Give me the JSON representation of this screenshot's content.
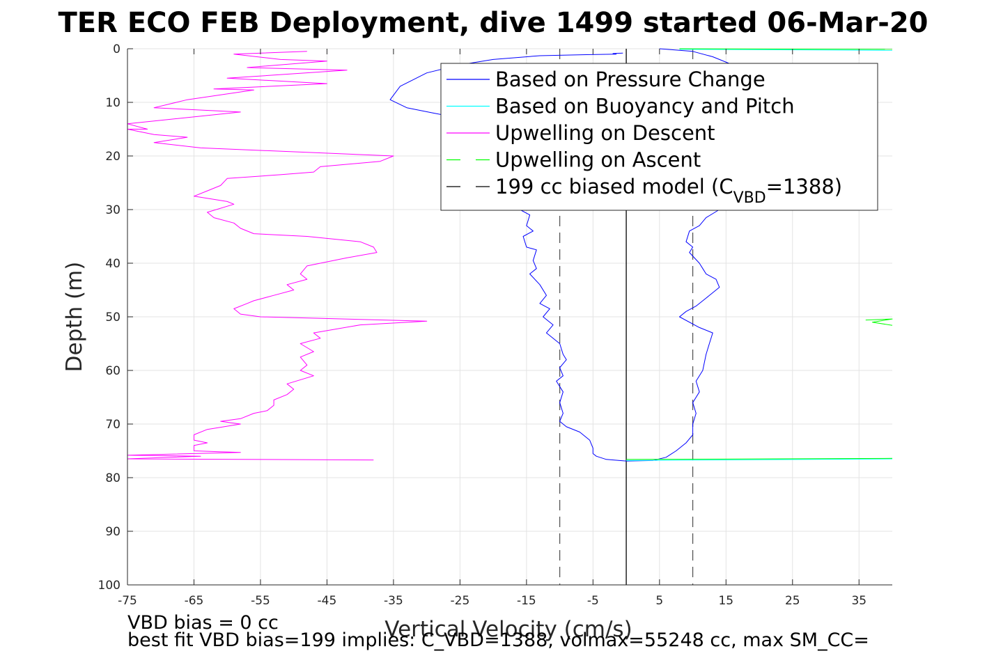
{
  "chart_data": {
    "type": "line",
    "title": "TER ECO FEB Deployment, dive 1499 started 06-Mar-20",
    "xlabel": "Vertical Velocity (cm/s)",
    "ylabel": "Depth (m)",
    "xlim": [
      -75,
      40
    ],
    "ylim": [
      0,
      100
    ],
    "y_reversed": true,
    "grid": true,
    "xticks": [
      "-75",
      "-65",
      "-55",
      "-45",
      "-35",
      "-25",
      "-15",
      "-5",
      "5",
      "15",
      "25",
      "35"
    ],
    "xtick_values": [
      -75,
      -65,
      -55,
      -45,
      -35,
      -25,
      -15,
      -5,
      5,
      15,
      25,
      35
    ],
    "yticks": [
      "0",
      "10",
      "20",
      "30",
      "40",
      "50",
      "60",
      "70",
      "80",
      "90",
      "100"
    ],
    "ytick_values": [
      0,
      10,
      20,
      30,
      40,
      50,
      60,
      70,
      80,
      90,
      100
    ],
    "legend": {
      "placement": "top-right",
      "entries": [
        {
          "label": "Based on Pressure Change",
          "color": "#0000ff",
          "dash": "solid"
        },
        {
          "label": "Based on Buoyancy and Pitch",
          "color": "#00ffff",
          "dash": "solid"
        },
        {
          "label": "Upwelling on Descent",
          "color": "#ff00ff",
          "dash": "solid"
        },
        {
          "label": "Upwelling on Ascent",
          "color": "#00ff00",
          "dash": "dashed"
        },
        {
          "label": "199 cc biased model (C",
          "sub": "VBD",
          "suffix": "=1388)",
          "color": "#000000",
          "dash": "dashed"
        }
      ]
    },
    "series": [
      {
        "name": "Based on Pressure Change (descent)",
        "color": "#0000ff",
        "points": [
          [
            -0.5,
            0.8
          ],
          [
            -2,
            0.9
          ],
          [
            -1.5,
            1.0
          ],
          [
            -6,
            1.1
          ],
          [
            -13,
            1.3
          ],
          [
            -20,
            2.0
          ],
          [
            -25,
            3.0
          ],
          [
            -30,
            4.5
          ],
          [
            -34,
            7.0
          ],
          [
            -35.5,
            9.5
          ],
          [
            -33,
            11.0
          ],
          [
            -29,
            12.0
          ],
          [
            -26,
            12.7
          ],
          [
            -24,
            13.0
          ],
          [
            -16,
            30.0
          ],
          [
            -14.5,
            31.0
          ],
          [
            -15,
            33.0
          ],
          [
            -14,
            34.0
          ],
          [
            -15.5,
            35.0
          ],
          [
            -15,
            37.0
          ],
          [
            -13.5,
            37.5
          ],
          [
            -14,
            39.5
          ],
          [
            -13.5,
            41.0
          ],
          [
            -14.5,
            42.0
          ],
          [
            -13,
            44.0
          ],
          [
            -12,
            46.0
          ],
          [
            -13,
            47.5
          ],
          [
            -11.5,
            48.5
          ],
          [
            -12.5,
            50.0
          ],
          [
            -11,
            51.5
          ],
          [
            -12,
            53.0
          ],
          [
            -10,
            55.0
          ],
          [
            -9.5,
            57.0
          ],
          [
            -9,
            58.0
          ],
          [
            -10,
            59.5
          ],
          [
            -9.5,
            61.0
          ],
          [
            -10.5,
            62.0
          ],
          [
            -9.5,
            64.0
          ],
          [
            -10,
            66.0
          ],
          [
            -9.5,
            68.0
          ],
          [
            -10,
            69.5
          ],
          [
            -9,
            70.5
          ],
          [
            -7,
            71.5
          ],
          [
            -5.5,
            73.0
          ],
          [
            -5,
            74.5
          ],
          [
            -5,
            75.5
          ],
          [
            -4.5,
            76.0
          ],
          [
            -3,
            76.6
          ],
          [
            -1,
            76.8
          ],
          [
            0,
            76.9
          ]
        ]
      },
      {
        "name": "Based on Pressure Change (ascent)",
        "color": "#0000ff",
        "points": [
          [
            0,
            76.9
          ],
          [
            4,
            76.8
          ],
          [
            6,
            76.2
          ],
          [
            7.5,
            75.0
          ],
          [
            9,
            73.5
          ],
          [
            10,
            72.0
          ],
          [
            10,
            70.0
          ],
          [
            10.5,
            68.0
          ],
          [
            10,
            66.0
          ],
          [
            11,
            64.0
          ],
          [
            10.5,
            62.0
          ],
          [
            11.5,
            60.0
          ],
          [
            12,
            57.0
          ],
          [
            12.5,
            55.0
          ],
          [
            13,
            53.0
          ],
          [
            11,
            52.0
          ],
          [
            8,
            50.0
          ],
          [
            9,
            49.0
          ],
          [
            10.5,
            48.0
          ],
          [
            12,
            46.5
          ],
          [
            14,
            44.5
          ],
          [
            13.5,
            43.0
          ],
          [
            12,
            42.0
          ],
          [
            11.5,
            41.0
          ],
          [
            11,
            40.0
          ],
          [
            9.5,
            38.0
          ],
          [
            10,
            37.0
          ],
          [
            9,
            36.0
          ],
          [
            9.5,
            34.0
          ],
          [
            11,
            33.0
          ],
          [
            12,
            31.5
          ],
          [
            14,
            30.0
          ]
        ]
      },
      {
        "name": "Based on Pressure Change (surface)",
        "color": "#0000ff",
        "points": [
          [
            5,
            0
          ],
          [
            10,
            0.5
          ],
          [
            13,
            1.5
          ],
          [
            16,
            3.0
          ],
          [
            18,
            4.0
          ]
        ]
      },
      {
        "name": "Based on Buoyancy and Pitch (surface)",
        "color": "#00ffff",
        "points": [
          [
            8,
            0.1
          ],
          [
            40,
            0.3
          ]
        ]
      },
      {
        "name": "Based on Buoyancy and Pitch (bottom)",
        "color": "#00ffff",
        "points": [
          [
            0,
            76.8
          ],
          [
            40,
            76.5
          ]
        ]
      },
      {
        "name": "Upwelling on Descent",
        "color": "#ff00ff",
        "points": [
          [
            -48,
            0.5
          ],
          [
            -59,
            1.0
          ],
          [
            -52,
            2.0
          ],
          [
            -45,
            2.3
          ],
          [
            -57,
            3.5
          ],
          [
            -42,
            4.0
          ],
          [
            -60,
            5.5
          ],
          [
            -45,
            6.5
          ],
          [
            -62,
            7.5
          ],
          [
            -56,
            7.7
          ],
          [
            -66,
            9.5
          ],
          [
            -71,
            11.0
          ],
          [
            -58,
            11.8
          ],
          [
            -75,
            14.0
          ],
          [
            -72,
            15.0
          ],
          [
            -75,
            15.0
          ],
          [
            -71,
            16.0
          ],
          [
            -66,
            16.5
          ],
          [
            -71,
            17.5
          ],
          [
            -64,
            18.5
          ],
          [
            -35,
            20.0
          ],
          [
            -37,
            21.0
          ],
          [
            -46,
            22.0
          ],
          [
            -47,
            23.0
          ],
          [
            -52,
            23.5
          ],
          [
            -60,
            24.2
          ],
          [
            -61,
            25.5
          ],
          [
            -63,
            26.5
          ],
          [
            -65,
            27.5
          ],
          [
            -60,
            28.5
          ],
          [
            -59,
            29.0
          ],
          [
            -63,
            30.5
          ],
          [
            -62,
            31.5
          ],
          [
            -59,
            32.5
          ],
          [
            -58,
            33.5
          ],
          [
            -56,
            34.5
          ],
          [
            -48,
            35.0
          ],
          [
            -40,
            36.0
          ],
          [
            -38,
            37.0
          ],
          [
            -37.5,
            38.0
          ],
          [
            -42,
            39.0
          ],
          [
            -48,
            40.5
          ],
          [
            -49,
            42.0
          ],
          [
            -48,
            43.0
          ],
          [
            -51,
            44.0
          ],
          [
            -50,
            45.0
          ],
          [
            -53,
            46.0
          ],
          [
            -56,
            47.0
          ],
          [
            -57,
            47.5
          ],
          [
            -59,
            48.5
          ],
          [
            -58,
            49.5
          ],
          [
            -55,
            50.0
          ],
          [
            -30,
            50.8
          ],
          [
            -40,
            51.5
          ],
          [
            -47,
            53.0
          ],
          [
            -46,
            54.0
          ],
          [
            -49,
            55.0
          ],
          [
            -47,
            56.5
          ],
          [
            -49,
            57.5
          ],
          [
            -48,
            59.0
          ],
          [
            -49,
            60.0
          ],
          [
            -47,
            61.0
          ],
          [
            -51,
            62.5
          ],
          [
            -50,
            63.5
          ],
          [
            -51,
            64.5
          ],
          [
            -53,
            65.5
          ],
          [
            -53,
            66.5
          ],
          [
            -54,
            67.5
          ],
          [
            -56,
            68.0
          ],
          [
            -58,
            69.0
          ],
          [
            -61,
            69.5
          ],
          [
            -58,
            70.0
          ],
          [
            -63,
            71.0
          ],
          [
            -65,
            72.0
          ],
          [
            -65,
            73.0
          ],
          [
            -63,
            73.5
          ],
          [
            -65,
            74.0
          ],
          [
            -65,
            75.0
          ],
          [
            -58,
            75.3
          ],
          [
            -75,
            75.8
          ],
          [
            -64,
            76.0
          ],
          [
            -75,
            76.5
          ],
          [
            -38,
            76.7
          ]
        ]
      },
      {
        "name": "Upwelling on Ascent (surface)",
        "color": "#00ff00",
        "points": [
          [
            8,
            0.0
          ],
          [
            40,
            0.1
          ]
        ]
      },
      {
        "name": "Upwelling on Ascent (bottom)",
        "color": "#00ff00",
        "points": [
          [
            0,
            76.6
          ],
          [
            40,
            76.4
          ]
        ]
      },
      {
        "name": "Upwelling on Ascent (mid)",
        "color": "#00ff00",
        "points": [
          [
            36,
            50.6
          ],
          [
            40,
            50.4
          ],
          [
            37,
            51.0
          ],
          [
            40,
            51.6
          ]
        ]
      }
    ],
    "reference_lines": [
      {
        "x": -10,
        "color": "#555555",
        "dash": "dashed"
      },
      {
        "x": 10,
        "color": "#555555",
        "dash": "dashed"
      },
      {
        "x": 0,
        "color": "#000000",
        "dash": "solid"
      }
    ],
    "annotations": [
      "VBD bias = 0 cc",
      "best fit VBD bias=199 implies: C_VBD=1388, volmax=55248 cc, max SM_CC="
    ]
  }
}
